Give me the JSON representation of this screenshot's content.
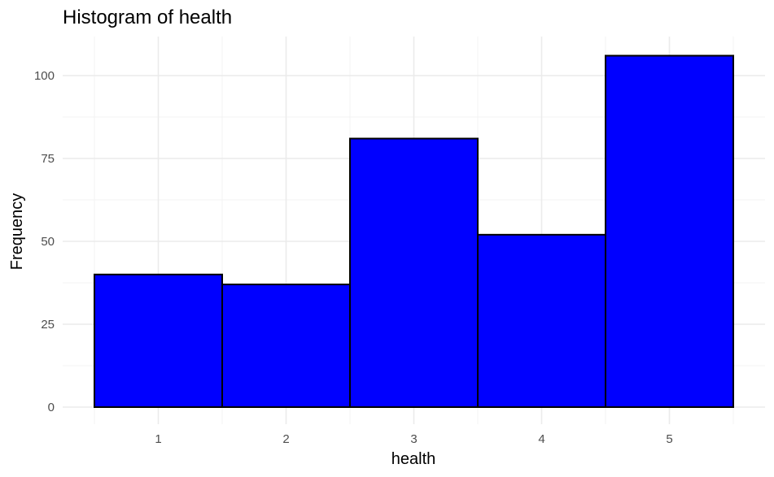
{
  "chart_data": {
    "type": "bar",
    "title": "Histogram of health",
    "xlabel": "health",
    "ylabel": "Frequency",
    "categories": [
      "1",
      "2",
      "3",
      "4",
      "5"
    ],
    "x": [
      1,
      2,
      3,
      4,
      5
    ],
    "values": [
      40,
      37,
      81,
      52,
      106
    ],
    "ylim": [
      0,
      111
    ],
    "yticks": [
      0,
      25,
      50,
      75,
      100
    ],
    "grid": true,
    "bar_fill": "#0000ff",
    "bar_outline": "#000000"
  }
}
